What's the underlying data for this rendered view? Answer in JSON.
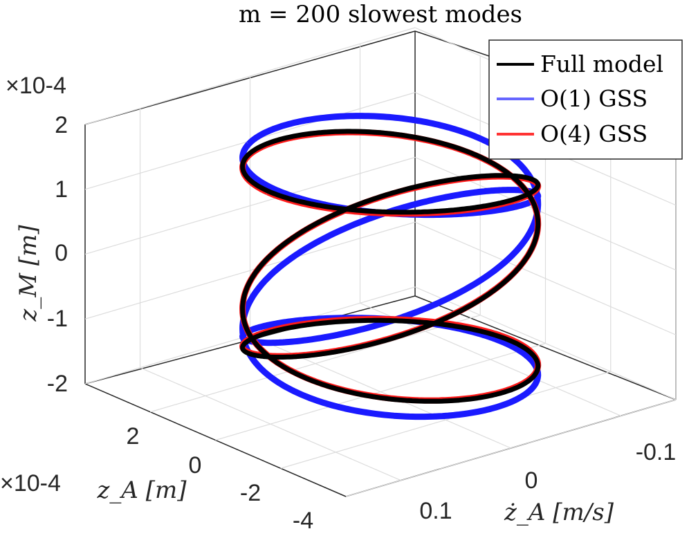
{
  "chart_data": {
    "type": "line",
    "projection": "3d",
    "title": "m = 200 slowest modes",
    "xlabel": "ż_A [m/s]",
    "ylabel": "z_A [m]",
    "zlabel": "z_M [m]",
    "xlim": [
      -0.15,
      0.15
    ],
    "ylim": [
      -0.0004,
      0.0004
    ],
    "zlim": [
      -0.0002,
      0.0002
    ],
    "x_ticks": [
      "0.1",
      "0",
      "-0.1"
    ],
    "y_ticks": [
      "2",
      "0",
      "-2",
      "-4"
    ],
    "z_ticks": [
      "2",
      "1",
      "0",
      "-1",
      "-2"
    ],
    "y_exponent": "×10-4",
    "z_exponent": "×10-4",
    "grid": true,
    "legend_position": "top-right",
    "series": [
      {
        "name": "Full model",
        "color": "#000000",
        "amplitude_zM": 0.00017,
        "phase": 0
      },
      {
        "name": "O(1) GSS",
        "color": "#1a1aff",
        "amplitude_zM": 0.00018,
        "phase": 0.9
      },
      {
        "name": "O(4) GSS",
        "color": "#ff1a1a",
        "amplitude_zM": 0.000168,
        "phase": 0.02
      }
    ]
  }
}
